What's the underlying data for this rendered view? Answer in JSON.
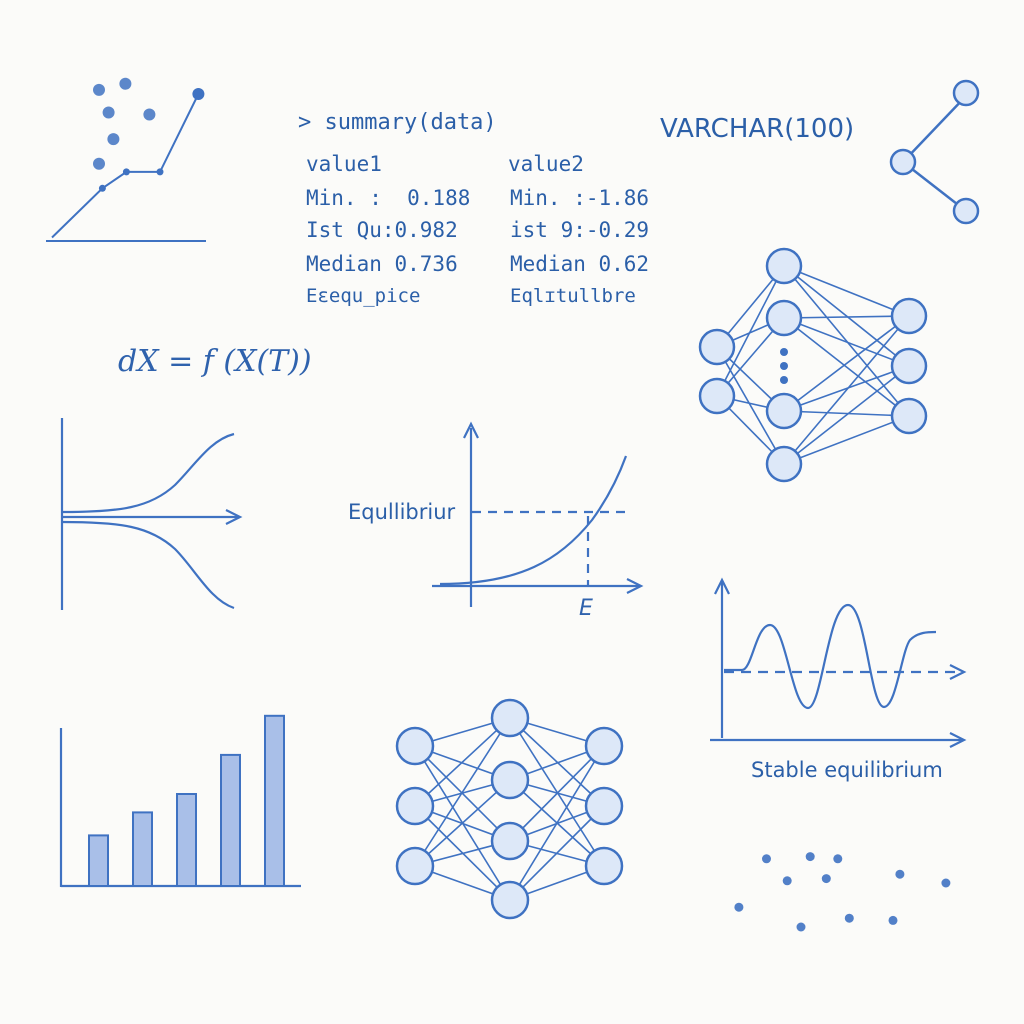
{
  "code_panel": {
    "prompt": "> summary(data)",
    "col1": {
      "header": "value1",
      "min": "Min. :  0.188",
      "q1": "Ist Qu:0.982",
      "median": "Median 0.736",
      "extra": "Eɛequ_pice"
    },
    "col2": {
      "header": "value2",
      "min": "Min. :-1.86",
      "q1": "ist 9:-0.29",
      "median": "Median 0.62",
      "extra": "Eqlɪtullbre"
    }
  },
  "sql_type": "VARCHAR(100)",
  "equation": "dX = f (X(T))",
  "equilibrium_chart": {
    "y_label": "Equllibriur",
    "x_label": "E"
  },
  "oscillation_chart": {
    "caption": "Stable equilibrium"
  },
  "colors": {
    "stroke": "#3f72c2",
    "fill": "#dde8f8",
    "bar_fill": "#a9bfe8",
    "text": "#2b5fa8",
    "background": "#fbfbf9"
  },
  "chart_data": [
    {
      "type": "scatter",
      "points": [
        [
          1,
          8.2
        ],
        [
          2.1,
          8.5
        ],
        [
          1.4,
          7.1
        ],
        [
          3.1,
          7.0
        ],
        [
          1.6,
          5.8
        ],
        [
          1.0,
          4.6
        ]
      ],
      "line": [
        [
          0.5,
          1.0
        ],
        [
          2.6,
          3.4
        ],
        [
          3.6,
          4.2
        ],
        [
          5.0,
          4.2
        ],
        [
          6.6,
          8.0
        ]
      ]
    },
    {
      "type": "bar",
      "categories": [
        "1",
        "2",
        "3",
        "4",
        "5"
      ],
      "values": [
        2.2,
        3.2,
        4.0,
        5.7,
        7.4
      ],
      "ylim": [
        0,
        8
      ]
    },
    {
      "type": "scatter",
      "points": [
        [
          1.5,
          4.6
        ],
        [
          3.4,
          4.7
        ],
        [
          4.6,
          4.6
        ],
        [
          2.4,
          3.6
        ],
        [
          4.1,
          3.7
        ],
        [
          7.3,
          3.9
        ],
        [
          9.3,
          3.5
        ],
        [
          0.3,
          2.4
        ],
        [
          3.0,
          1.5
        ],
        [
          5.1,
          1.9
        ],
        [
          7.0,
          1.8
        ]
      ]
    }
  ]
}
